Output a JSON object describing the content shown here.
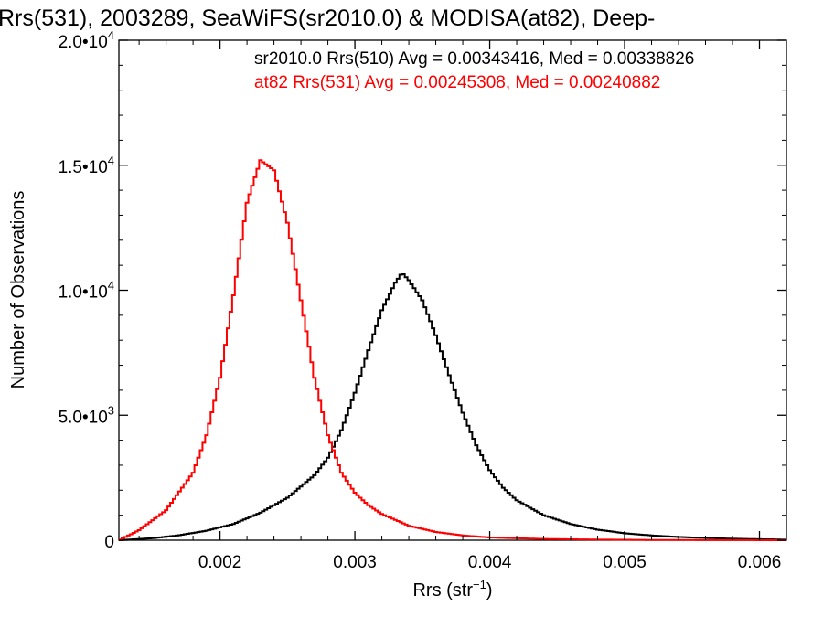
{
  "chart_data": {
    "type": "line",
    "title": "Rrs(531), 2003289, SeaWiFS(sr2010.0) & MODISA(at82), Deep-",
    "xlabel": "Rrs (str⁻¹)",
    "ylabel": "Number of Observations",
    "xlim": [
      0.00125,
      0.0062
    ],
    "ylim": [
      0,
      20000
    ],
    "grid": false,
    "legend_position": "top-right",
    "x_ticks": [
      {
        "value": 0.002,
        "label": "0.002"
      },
      {
        "value": 0.003,
        "label": "0.003"
      },
      {
        "value": 0.004,
        "label": "0.004"
      },
      {
        "value": 0.005,
        "label": "0.005"
      },
      {
        "value": 0.006,
        "label": "0.006"
      }
    ],
    "y_ticks": [
      {
        "value": 0,
        "mantissa": "0",
        "exponent": ""
      },
      {
        "value": 5000,
        "mantissa": "5.0•10",
        "exponent": "3"
      },
      {
        "value": 10000,
        "mantissa": "1.0•10",
        "exponent": "4"
      },
      {
        "value": 15000,
        "mantissa": "1.5•10",
        "exponent": "4"
      },
      {
        "value": 20000,
        "mantissa": "2.0•10",
        "exponent": "4"
      }
    ],
    "series": [
      {
        "name": "sr2010.0 Rrs(510) Avg = 0.00343416, Med = 0.00338826",
        "color": "#000000",
        "x": [
          0.00125,
          0.0015,
          0.0017,
          0.0019,
          0.0021,
          0.0023,
          0.0025,
          0.0027,
          0.0028,
          0.0029,
          0.003,
          0.0031,
          0.0032,
          0.0033,
          0.00335,
          0.0034,
          0.0035,
          0.0036,
          0.0037,
          0.0038,
          0.0039,
          0.004,
          0.0041,
          0.0042,
          0.0044,
          0.0046,
          0.0048,
          0.005,
          0.0052,
          0.0054,
          0.0056,
          0.0058,
          0.006,
          0.0062
        ],
        "y": [
          0,
          80,
          200,
          380,
          650,
          1100,
          1700,
          2600,
          3300,
          4400,
          5900,
          7600,
          9200,
          10300,
          10700,
          10400,
          9600,
          8200,
          6600,
          5100,
          3800,
          2800,
          2100,
          1600,
          1000,
          650,
          420,
          280,
          190,
          130,
          90,
          60,
          40,
          20
        ]
      },
      {
        "name": "at82 Rrs(531) Avg = 0.00245308, Med = 0.00240882",
        "color": "#ff0000",
        "x": [
          0.00125,
          0.0014,
          0.0016,
          0.0018,
          0.0019,
          0.002,
          0.0021,
          0.0022,
          0.0023,
          0.0024,
          0.0025,
          0.0026,
          0.0027,
          0.0028,
          0.0029,
          0.003,
          0.0031,
          0.0032,
          0.0034,
          0.0036,
          0.0038,
          0.004,
          0.0044,
          0.0048,
          0.0052,
          0.0062
        ],
        "y": [
          0,
          400,
          1200,
          2700,
          4200,
          6500,
          9800,
          13500,
          15200,
          14800,
          12700,
          9600,
          6500,
          4200,
          2700,
          1900,
          1400,
          1050,
          580,
          330,
          190,
          110,
          50,
          25,
          10,
          0
        ]
      }
    ]
  }
}
